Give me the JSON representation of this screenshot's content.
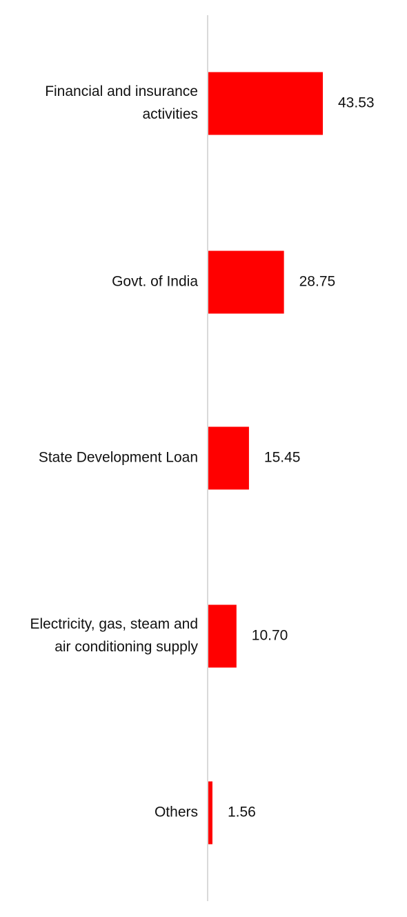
{
  "chart_data": {
    "type": "bar",
    "orientation": "horizontal",
    "categories": [
      [
        "Financial and insurance",
        "activities"
      ],
      [
        "Govt. of India"
      ],
      [
        "State Development Loan"
      ],
      [
        "Electricity, gas, steam and",
        "air conditioning supply"
      ],
      [
        "Others"
      ]
    ],
    "values": [
      43.53,
      28.75,
      15.45,
      10.7,
      1.56
    ],
    "value_labels": [
      "43.53",
      "28.75",
      "15.45",
      "10.70",
      "1.56"
    ],
    "bar_color": "#ff0000",
    "axis_color": "#d9d9d9",
    "grid": false,
    "legend": "none",
    "title": "",
    "xlabel": "",
    "ylabel": ""
  }
}
